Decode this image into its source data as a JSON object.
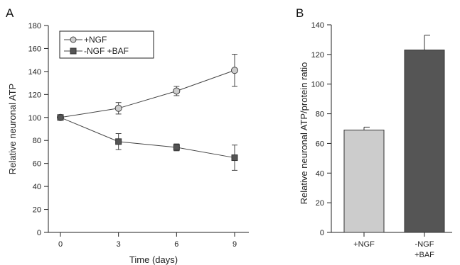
{
  "chart_data": [
    {
      "panel_label": "A",
      "type": "line",
      "xlabel": "Time (days)",
      "ylabel": "Relative neuronal ATP",
      "x": [
        0,
        3,
        6,
        9
      ],
      "xlim": [
        0,
        9
      ],
      "ylim": [
        0,
        180
      ],
      "xticks": [
        "0",
        "3",
        "6",
        "9"
      ],
      "yticks": [
        "0",
        "20",
        "40",
        "60",
        "80",
        "100",
        "120",
        "140",
        "160",
        "180"
      ],
      "legend_position": "top-left",
      "series": [
        {
          "name": "+NGF",
          "marker": "circle",
          "color": "#cccccc",
          "values": [
            100,
            108,
            123,
            141
          ],
          "errors": [
            1,
            5,
            4,
            14
          ]
        },
        {
          "name": "-NGF +BAF",
          "marker": "square",
          "color": "#555555",
          "values": [
            100,
            79,
            74,
            65
          ],
          "errors": [
            1,
            7,
            3,
            11
          ]
        }
      ]
    },
    {
      "panel_label": "B",
      "type": "bar",
      "ylabel": "Relative neuronal ATP/protein ratio",
      "categories": [
        "+NGF",
        "-NGF\n+BAF"
      ],
      "category_lines": [
        [
          "+NGF"
        ],
        [
          "-NGF",
          "+BAF"
        ]
      ],
      "values": [
        69,
        123
      ],
      "errors": [
        2,
        10
      ],
      "colors": [
        "#cccccc",
        "#555555"
      ],
      "ylim": [
        0,
        140
      ],
      "yticks": [
        "0",
        "20",
        "40",
        "60",
        "80",
        "100",
        "120",
        "140"
      ]
    }
  ]
}
